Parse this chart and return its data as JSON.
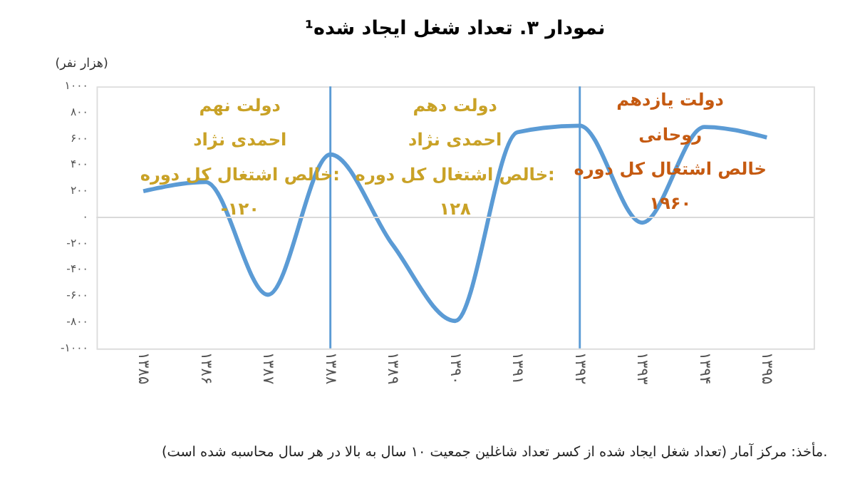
{
  "chart_data": {
    "type": "line",
    "title": "نمودار ۳. تعداد شغل ایجاد شده¹",
    "ylabel": "(هزار نفر)",
    "categories": [
      "۱۳۸۵",
      "۱۳۸۶",
      "۱۳۸۷",
      "۱۳۸۸",
      "۱۳۸۹",
      "۱۳۹۰",
      "۱۳۹۱",
      "۱۳۹۲",
      "۱۳۹۳",
      "۱۳۹۴",
      "۱۳۹۵"
    ],
    "series": [
      {
        "color": "#5b9bd5",
        "values": [
          200,
          270,
          -590,
          480,
          -210,
          -790,
          650,
          700,
          -40,
          690,
          610
        ]
      }
    ],
    "ylim": [
      -1000,
      1000
    ],
    "yticks": [
      {
        "value": -1000,
        "label": "-۱۰۰۰"
      },
      {
        "value": -800,
        "label": "-۸۰۰"
      },
      {
        "value": -600,
        "label": "-۶۰۰"
      },
      {
        "value": -400,
        "label": "-۴۰۰"
      },
      {
        "value": -200,
        "label": "-۲۰۰"
      },
      {
        "value": 0,
        "label": "۰"
      },
      {
        "value": 200,
        "label": "۲۰۰"
      },
      {
        "value": 400,
        "label": "۴۰۰"
      },
      {
        "value": 600,
        "label": "۶۰۰"
      },
      {
        "value": 800,
        "label": "۸۰۰"
      },
      {
        "value": 1000,
        "label": "۱۰۰۰"
      }
    ],
    "ref_lines": [
      {
        "axis": "x",
        "value": "۱۳۸۸",
        "color": "#5b9bd5"
      },
      {
        "axis": "x",
        "value": "۱۳۹۲",
        "color": "#5b9bd5"
      }
    ],
    "annotations": [
      "دولت نهم\nاحمدی نژاد\nخالص اشتغال کل دوره:\n-۱۲۰",
      "دولت دهم\nاحمدی نژاد\nخالص اشتغال کل دوره:\n۱۲۸",
      "دولت یازدهم\nروحانی\nخالص اشتغال کل دوره\n۱۹۶۰",
      "مأخذ: مرکز آمار (تعداد شغل ایجاد شده از کسر تعداد شاغلین جمعیت ۱۰ سال به بالا در هر سال محاسبه شده است)."
    ],
    "marker": "none",
    "line_style": "solid"
  }
}
